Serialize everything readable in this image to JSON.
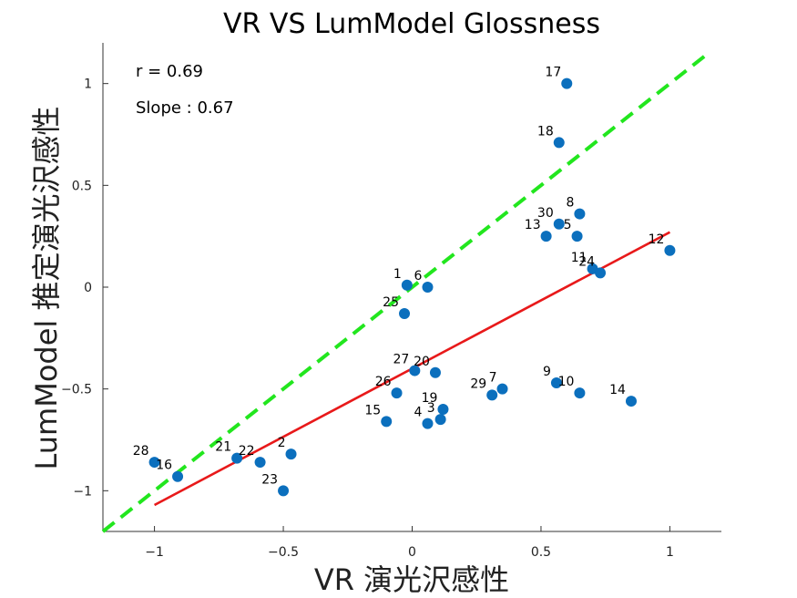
{
  "chart_data": {
    "type": "scatter",
    "title": "VR VS LumModel Glossness",
    "xlabel": "VR 演光沢感性",
    "ylabel": "LumModel 推定演光沢感性",
    "xlim": [
      -1.2,
      1.2
    ],
    "ylim": [
      -1.2,
      1.2
    ],
    "xticks": [
      -1,
      -0.5,
      0,
      0.5,
      1
    ],
    "yticks": [
      -1,
      -0.5,
      0,
      0.5,
      1
    ],
    "xtick_labels": [
      "−1",
      "−0.5",
      "0",
      "0.5",
      "1"
    ],
    "ytick_labels": [
      "−1",
      "−0.5",
      "0",
      "0.5",
      "1"
    ],
    "annotations": {
      "r": "r = 0.69",
      "slope": "Slope : 0.67"
    },
    "points": [
      {
        "label": "1",
        "x": -0.02,
        "y": 0.01
      },
      {
        "label": "2",
        "x": -0.47,
        "y": -0.82
      },
      {
        "label": "3",
        "x": 0.11,
        "y": -0.65
      },
      {
        "label": "4",
        "x": 0.06,
        "y": -0.67
      },
      {
        "label": "5",
        "x": 0.64,
        "y": 0.25
      },
      {
        "label": "6",
        "x": 0.06,
        "y": 0.0
      },
      {
        "label": "7",
        "x": 0.35,
        "y": -0.5
      },
      {
        "label": "8",
        "x": 0.65,
        "y": 0.36
      },
      {
        "label": "9",
        "x": 0.56,
        "y": -0.47
      },
      {
        "label": "10",
        "x": 0.65,
        "y": -0.52
      },
      {
        "label": "11",
        "x": 0.7,
        "y": 0.09
      },
      {
        "label": "12",
        "x": 1.0,
        "y": 0.18
      },
      {
        "label": "13",
        "x": 0.52,
        "y": 0.25
      },
      {
        "label": "14",
        "x": 0.85,
        "y": -0.56
      },
      {
        "label": "15",
        "x": -0.1,
        "y": -0.66
      },
      {
        "label": "16",
        "x": -0.91,
        "y": -0.93
      },
      {
        "label": "17",
        "x": 0.6,
        "y": 1.0
      },
      {
        "label": "18",
        "x": 0.57,
        "y": 0.71
      },
      {
        "label": "19",
        "x": 0.12,
        "y": -0.6
      },
      {
        "label": "20",
        "x": 0.09,
        "y": -0.42
      },
      {
        "label": "21",
        "x": -0.68,
        "y": -0.84
      },
      {
        "label": "22",
        "x": -0.59,
        "y": -0.86
      },
      {
        "label": "23",
        "x": -0.5,
        "y": -1.0
      },
      {
        "label": "24",
        "x": 0.73,
        "y": 0.07
      },
      {
        "label": "25",
        "x": -0.03,
        "y": -0.13
      },
      {
        "label": "26",
        "x": -0.06,
        "y": -0.52
      },
      {
        "label": "27",
        "x": 0.01,
        "y": -0.41
      },
      {
        "label": "28",
        "x": -1.0,
        "y": -0.86
      },
      {
        "label": "29",
        "x": 0.31,
        "y": -0.53
      },
      {
        "label": "30",
        "x": 0.57,
        "y": 0.31
      }
    ],
    "lines": [
      {
        "kind": "regression",
        "color": "#e8191a",
        "dash": "solid",
        "x": [
          -1.0,
          1.0
        ],
        "y": [
          -1.07,
          0.27
        ]
      },
      {
        "kind": "identity",
        "color": "#22e61e",
        "dash": "dashed",
        "x": [
          -1.2,
          1.15
        ],
        "y": [
          -1.2,
          1.15
        ]
      }
    ],
    "colors": {
      "marker": "#0b6fbd",
      "regression": "#e8191a",
      "identity": "#22e61e"
    },
    "grid": false
  }
}
